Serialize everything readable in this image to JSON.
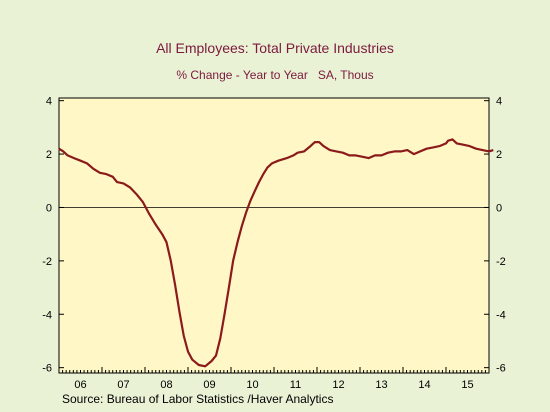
{
  "chart_data": {
    "type": "line",
    "title": "All Employees: Total Private Industries",
    "subtitle": "% Change - Year to Year   SA, Thous",
    "source": "Source:  Bureau of Labor Statistics /Haver Analytics",
    "x_tick_labels": [
      "06",
      "07",
      "08",
      "09",
      "10",
      "11",
      "12",
      "13",
      "14",
      "15"
    ],
    "y_tick_labels": [
      "4",
      "2",
      "0",
      "-2",
      "-4",
      "-6"
    ],
    "ylim": [
      -6.2,
      4.1
    ],
    "xlim": [
      2006.0,
      2016.0
    ],
    "grid": false,
    "zero_line": true,
    "colors": {
      "background": "#eaf2d6",
      "plot_area": "#fff8c6",
      "line": "#8b1a1a",
      "title": "#7b1a3c"
    },
    "series": [
      {
        "values": [
          [
            2006.0,
            2.2
          ],
          [
            2006.1,
            2.1
          ],
          [
            2006.2,
            1.95
          ],
          [
            2006.35,
            1.85
          ],
          [
            2006.5,
            1.75
          ],
          [
            2006.65,
            1.65
          ],
          [
            2006.8,
            1.45
          ],
          [
            2006.95,
            1.3
          ],
          [
            2007.1,
            1.25
          ],
          [
            2007.25,
            1.15
          ],
          [
            2007.35,
            0.95
          ],
          [
            2007.5,
            0.9
          ],
          [
            2007.65,
            0.75
          ],
          [
            2007.8,
            0.5
          ],
          [
            2007.95,
            0.2
          ],
          [
            2008.1,
            -0.25
          ],
          [
            2008.25,
            -0.65
          ],
          [
            2008.4,
            -1.0
          ],
          [
            2008.5,
            -1.3
          ],
          [
            2008.6,
            -2.0
          ],
          [
            2008.7,
            -2.9
          ],
          [
            2008.8,
            -3.9
          ],
          [
            2008.9,
            -4.8
          ],
          [
            2009.0,
            -5.4
          ],
          [
            2009.1,
            -5.7
          ],
          [
            2009.25,
            -5.9
          ],
          [
            2009.4,
            -5.95
          ],
          [
            2009.55,
            -5.75
          ],
          [
            2009.65,
            -5.55
          ],
          [
            2009.75,
            -4.9
          ],
          [
            2009.85,
            -4.0
          ],
          [
            2009.95,
            -3.0
          ],
          [
            2010.05,
            -2.0
          ],
          [
            2010.15,
            -1.3
          ],
          [
            2010.25,
            -0.7
          ],
          [
            2010.35,
            -0.2
          ],
          [
            2010.45,
            0.25
          ],
          [
            2010.55,
            0.6
          ],
          [
            2010.65,
            0.95
          ],
          [
            2010.75,
            1.25
          ],
          [
            2010.85,
            1.5
          ],
          [
            2010.95,
            1.65
          ],
          [
            2011.1,
            1.75
          ],
          [
            2011.3,
            1.85
          ],
          [
            2011.45,
            1.95
          ],
          [
            2011.55,
            2.05
          ],
          [
            2011.7,
            2.1
          ],
          [
            2011.85,
            2.3
          ],
          [
            2011.95,
            2.45
          ],
          [
            2012.05,
            2.45
          ],
          [
            2012.15,
            2.3
          ],
          [
            2012.3,
            2.15
          ],
          [
            2012.45,
            2.1
          ],
          [
            2012.6,
            2.05
          ],
          [
            2012.75,
            1.95
          ],
          [
            2012.9,
            1.95
          ],
          [
            2013.05,
            1.9
          ],
          [
            2013.2,
            1.85
          ],
          [
            2013.35,
            1.95
          ],
          [
            2013.5,
            1.95
          ],
          [
            2013.65,
            2.05
          ],
          [
            2013.8,
            2.1
          ],
          [
            2013.95,
            2.1
          ],
          [
            2014.1,
            2.15
          ],
          [
            2014.25,
            2.0
          ],
          [
            2014.4,
            2.1
          ],
          [
            2014.55,
            2.2
          ],
          [
            2014.7,
            2.25
          ],
          [
            2014.85,
            2.3
          ],
          [
            2015.0,
            2.4
          ],
          [
            2015.05,
            2.5
          ],
          [
            2015.15,
            2.55
          ],
          [
            2015.25,
            2.4
          ],
          [
            2015.4,
            2.35
          ],
          [
            2015.55,
            2.3
          ],
          [
            2015.7,
            2.2
          ],
          [
            2015.85,
            2.15
          ],
          [
            2016.0,
            2.1
          ],
          [
            2016.1,
            2.15
          ]
        ]
      }
    ]
  }
}
